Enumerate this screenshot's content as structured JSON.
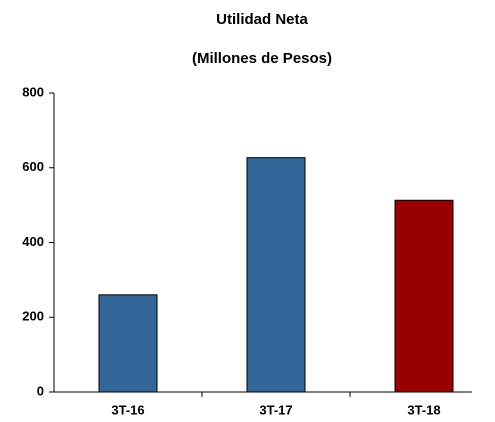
{
  "chart_data": {
    "type": "bar",
    "title": "Utilidad Neta",
    "subtitle": "(Millones de Pesos)",
    "categories": [
      "3T-16",
      "3T-17",
      "3T-18"
    ],
    "values": [
      260,
      627,
      513
    ],
    "colors": [
      "#336699",
      "#336699",
      "#990000"
    ],
    "ylim": [
      0,
      800
    ],
    "yticks": [
      0,
      200,
      400,
      600,
      800
    ],
    "grid": false
  }
}
